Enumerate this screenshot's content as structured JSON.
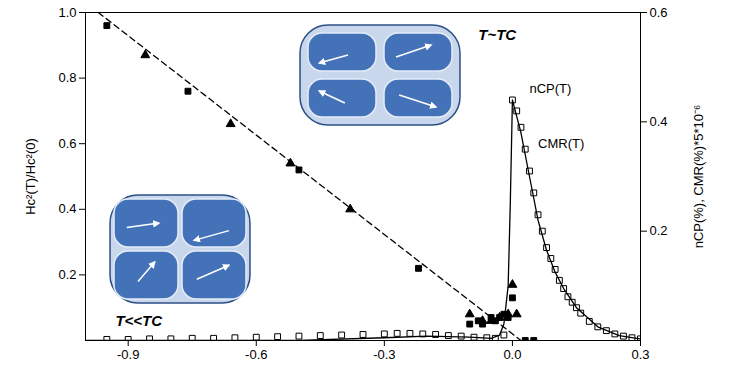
{
  "chart_data": {
    "type": "scatter",
    "xlim": [
      -1.0,
      0.3
    ],
    "xticks": [
      -0.9,
      -0.6,
      -0.3,
      {
        "value": 0,
        "label": "0.0"
      },
      0.3
    ],
    "ylabel": "Hc²(T)/Hc²(0)",
    "ylim": [
      0,
      1
    ],
    "yticks": [
      0.2,
      0.4,
      0.6,
      0.8,
      {
        "value": 1,
        "label": "1.0"
      }
    ],
    "y2label": "nCP(%), CMR(%)*5*10⁻⁶",
    "y2lim": [
      0,
      0.6
    ],
    "y2ticks": [
      0.2,
      0.4,
      0.6
    ],
    "grid": false,
    "series": [
      {
        "type": "scatter",
        "marker": "square",
        "color": "#000000",
        "x": [
          -0.95,
          -0.76,
          -0.5,
          -0.22,
          -0.1,
          -0.08,
          -0.07,
          -0.05,
          -0.04,
          -0.03,
          -0.02,
          -0.01,
          0.0,
          0.03,
          0.05
        ],
        "values": [
          0.96,
          0.76,
          0.52,
          0.22,
          0.05,
          0.06,
          0.05,
          0.07,
          0.06,
          0.07,
          0.08,
          0.07,
          0.13,
          0.0,
          0.0
        ]
      },
      {
        "type": "scatter",
        "marker": "triangle",
        "color": "#000000",
        "x": [
          -0.86,
          -0.66,
          -0.52,
          -0.38,
          -0.1,
          -0.07,
          -0.05,
          -0.03,
          -0.01,
          0.0,
          0.01
        ],
        "values": [
          0.87,
          0.66,
          0.54,
          0.4,
          0.08,
          0.06,
          0.06,
          0.07,
          0.08,
          0.17,
          0.08
        ]
      },
      {
        "type": "line",
        "line_style": "dashed",
        "color": "#000000",
        "x": [
          -0.97,
          0.02
        ],
        "values": [
          1.0,
          0.0
        ]
      },
      {
        "type": "scatter",
        "marker": "open_square",
        "color": "#000000",
        "axis": "y2",
        "x": [
          -0.95,
          -0.9,
          -0.85,
          -0.8,
          -0.75,
          -0.7,
          -0.65,
          -0.6,
          -0.55,
          -0.5,
          -0.45,
          -0.4,
          -0.35,
          -0.3,
          -0.27,
          -0.24,
          -0.21,
          -0.18,
          -0.15,
          -0.12,
          -0.09,
          -0.06,
          -0.04,
          -0.02,
          0.0,
          0.01,
          0.02,
          0.03,
          0.04,
          0.05,
          0.06,
          0.07,
          0.08,
          0.09,
          0.1,
          0.11,
          0.12,
          0.13,
          0.14,
          0.15,
          0.16,
          0.18,
          0.2,
          0.22,
          0.24,
          0.26,
          0.28,
          0.3
        ],
        "values": [
          0.002,
          0.002,
          0.003,
          0.003,
          0.004,
          0.004,
          0.005,
          0.006,
          0.007,
          0.008,
          0.009,
          0.01,
          0.011,
          0.012,
          0.013,
          0.013,
          0.012,
          0.011,
          0.009,
          0.008,
          0.006,
          0.005,
          0.004,
          0.01,
          0.44,
          0.42,
          0.39,
          0.35,
          0.31,
          0.27,
          0.23,
          0.2,
          0.17,
          0.15,
          0.13,
          0.11,
          0.095,
          0.08,
          0.07,
          0.06,
          0.05,
          0.035,
          0.025,
          0.018,
          0.012,
          0.008,
          0.005,
          0.003
        ]
      },
      {
        "type": "line",
        "line_style": "solid",
        "color": "#000000",
        "axis": "y2",
        "x": [
          -1.0,
          -0.5,
          -0.3,
          -0.2,
          -0.1,
          -0.05,
          -0.03,
          -0.02,
          -0.01,
          -0.005,
          0.0,
          0.01,
          0.02,
          0.04,
          0.06,
          0.08,
          0.1,
          0.12,
          0.15,
          0.2,
          0.25,
          0.3
        ],
        "values": [
          0.0,
          0.0,
          0.005,
          0.008,
          0.006,
          0.004,
          0.01,
          0.03,
          0.1,
          0.25,
          0.44,
          0.41,
          0.38,
          0.3,
          0.22,
          0.165,
          0.125,
          0.095,
          0.06,
          0.025,
          0.009,
          0.003
        ]
      }
    ],
    "annotations": [
      {
        "text": "T~TC",
        "x": -0.08,
        "y": 0.93
      },
      {
        "text": "T<<TC",
        "x": -0.93,
        "y": 0.06
      },
      {
        "text": "nCP(T)",
        "x": 0.04,
        "y": 0.46,
        "axis": "y2"
      },
      {
        "text": "CMR(T)",
        "x": 0.06,
        "y": 0.36,
        "axis": "y2"
      }
    ]
  }
}
